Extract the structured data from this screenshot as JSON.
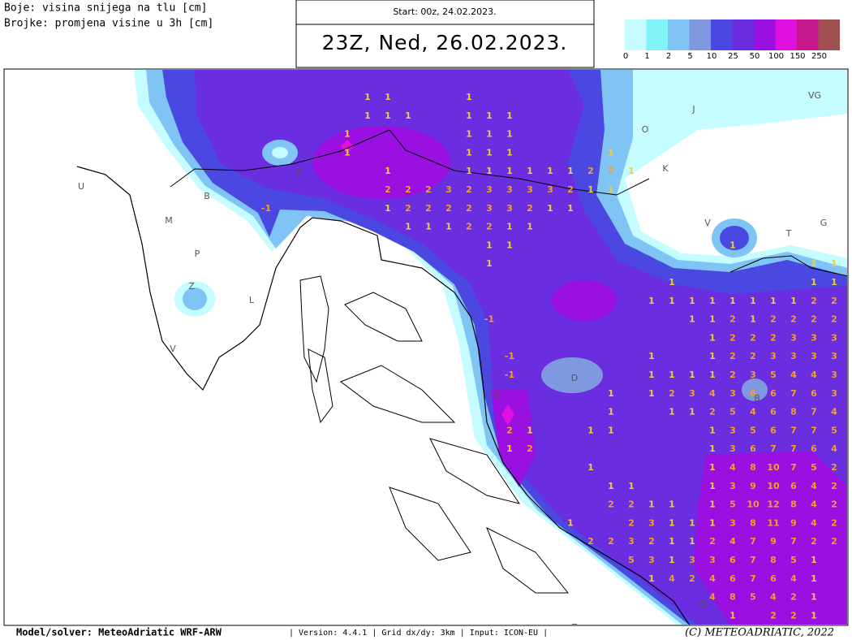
{
  "header": {
    "legend_lines": [
      "Boje: visina snijega na tlu [cm]",
      "Brojke: promjena visine u 3h [cm]"
    ],
    "start": "Start: 00z, 24.02.2023.",
    "valid_time": "23Z, Ned, 26.02.2023."
  },
  "colorbar": {
    "colors": [
      "#c4fcff",
      "#80f4f8",
      "#7fc4f4",
      "#7f98e0",
      "#4a48e0",
      "#6a2ee0",
      "#9a10e0",
      "#e010e0",
      "#c81890",
      "#a05050"
    ],
    "labels": [
      0,
      1,
      2,
      5,
      10,
      25,
      50,
      100,
      150,
      250
    ]
  },
  "map": {
    "place_labels": [
      "U",
      "B",
      "M",
      "P",
      "Z",
      "L",
      "V",
      "R",
      "O",
      "J",
      "K",
      "V",
      "T",
      "G",
      "VG",
      "B",
      "D",
      "K",
      "Z",
      "O"
    ],
    "snow_change_grid": {
      "rows": [
        [
          null,
          null,
          null,
          null,
          null,
          1,
          1,
          null,
          null,
          null,
          1,
          null,
          null,
          null,
          null,
          null,
          null,
          null,
          null,
          null,
          null,
          null,
          null,
          null,
          null,
          null,
          null,
          null,
          null
        ],
        [
          null,
          null,
          null,
          null,
          null,
          1,
          1,
          1,
          null,
          null,
          1,
          1,
          1,
          null,
          null,
          null,
          null,
          null,
          null,
          null,
          null,
          null,
          null,
          null,
          null,
          null,
          null,
          null,
          null
        ],
        [
          null,
          null,
          null,
          null,
          1,
          null,
          null,
          null,
          null,
          null,
          1,
          1,
          1,
          null,
          null,
          null,
          null,
          null,
          null,
          null,
          null,
          null,
          null,
          null,
          null,
          null,
          null,
          null,
          null
        ],
        [
          null,
          null,
          null,
          null,
          1,
          null,
          null,
          null,
          null,
          null,
          1,
          1,
          1,
          null,
          null,
          null,
          null,
          1,
          null,
          null,
          null,
          null,
          null,
          null,
          null,
          null,
          null,
          null,
          null
        ],
        [
          null,
          null,
          null,
          null,
          null,
          null,
          1,
          null,
          null,
          null,
          1,
          1,
          1,
          1,
          1,
          1,
          2,
          2,
          1,
          null,
          null,
          null,
          null,
          null,
          null,
          null,
          null,
          null,
          null
        ],
        [
          null,
          null,
          null,
          null,
          null,
          null,
          2,
          2,
          2,
          3,
          2,
          3,
          3,
          3,
          3,
          2,
          1,
          1,
          null,
          null,
          null,
          null,
          null,
          null,
          null,
          null,
          null,
          null,
          null
        ],
        [
          -1,
          null,
          null,
          null,
          null,
          null,
          1,
          2,
          2,
          2,
          2,
          3,
          3,
          2,
          1,
          1,
          null,
          null,
          null,
          null,
          null,
          null,
          null,
          null,
          null,
          null,
          null,
          null,
          null
        ],
        [
          null,
          null,
          null,
          null,
          null,
          null,
          null,
          1,
          1,
          1,
          2,
          2,
          1,
          1,
          null,
          null,
          null,
          null,
          null,
          null,
          null,
          null,
          null,
          null,
          null,
          null,
          null,
          null,
          null
        ],
        [
          null,
          null,
          null,
          null,
          null,
          null,
          null,
          null,
          null,
          null,
          null,
          1,
          1,
          null,
          null,
          null,
          null,
          null,
          null,
          null,
          null,
          null,
          null,
          1,
          null,
          null,
          null,
          null,
          null
        ],
        [
          null,
          null,
          null,
          null,
          null,
          null,
          null,
          null,
          null,
          null,
          null,
          1,
          null,
          null,
          null,
          null,
          null,
          null,
          null,
          null,
          null,
          null,
          null,
          null,
          null,
          null,
          null,
          1,
          1
        ],
        [
          null,
          null,
          null,
          null,
          null,
          null,
          null,
          null,
          null,
          null,
          null,
          null,
          null,
          null,
          null,
          null,
          null,
          null,
          null,
          null,
          1,
          null,
          null,
          null,
          null,
          null,
          null,
          1,
          1
        ],
        [
          null,
          null,
          null,
          null,
          null,
          null,
          null,
          null,
          null,
          null,
          null,
          null,
          null,
          null,
          null,
          null,
          null,
          null,
          null,
          1,
          1,
          1,
          1,
          1,
          1,
          1,
          1,
          2,
          2
        ],
        [
          null,
          null,
          null,
          null,
          null,
          null,
          null,
          null,
          null,
          null,
          null,
          -1,
          null,
          null,
          null,
          null,
          null,
          null,
          null,
          null,
          null,
          1,
          1,
          2,
          1,
          2,
          2,
          2,
          2
        ],
        [
          null,
          null,
          null,
          null,
          null,
          null,
          null,
          null,
          null,
          null,
          null,
          null,
          null,
          null,
          null,
          null,
          null,
          null,
          null,
          null,
          null,
          null,
          1,
          2,
          2,
          2,
          3,
          3,
          3
        ],
        [
          null,
          null,
          null,
          null,
          null,
          null,
          null,
          null,
          null,
          null,
          null,
          null,
          -1,
          null,
          null,
          null,
          null,
          null,
          null,
          1,
          null,
          null,
          1,
          2,
          2,
          3,
          3,
          3,
          3
        ],
        [
          null,
          null,
          null,
          null,
          null,
          null,
          null,
          null,
          null,
          null,
          null,
          null,
          -1,
          null,
          null,
          null,
          null,
          null,
          null,
          1,
          1,
          1,
          1,
          2,
          3,
          5,
          4,
          4,
          3
        ],
        [
          null,
          null,
          null,
          null,
          null,
          null,
          null,
          null,
          null,
          null,
          null,
          null,
          null,
          null,
          null,
          null,
          null,
          1,
          null,
          1,
          2,
          3,
          4,
          3,
          6,
          6,
          7,
          6,
          3
        ],
        [
          null,
          null,
          null,
          null,
          null,
          null,
          null,
          null,
          null,
          null,
          null,
          null,
          null,
          null,
          null,
          null,
          null,
          1,
          null,
          null,
          1,
          1,
          2,
          5,
          4,
          6,
          8,
          7,
          4
        ],
        [
          null,
          null,
          null,
          null,
          null,
          null,
          null,
          null,
          null,
          null,
          null,
          null,
          2,
          1,
          null,
          null,
          1,
          1,
          null,
          null,
          null,
          null,
          1,
          3,
          5,
          6,
          7,
          7,
          5
        ],
        [
          null,
          null,
          null,
          null,
          null,
          null,
          null,
          null,
          null,
          null,
          null,
          null,
          1,
          2,
          null,
          null,
          null,
          null,
          null,
          null,
          null,
          null,
          1,
          3,
          6,
          7,
          7,
          6,
          4
        ],
        [
          null,
          null,
          null,
          null,
          null,
          null,
          null,
          null,
          null,
          null,
          null,
          null,
          null,
          null,
          null,
          null,
          1,
          null,
          null,
          null,
          null,
          null,
          1,
          4,
          8,
          10,
          7,
          5,
          2
        ],
        [
          null,
          null,
          null,
          null,
          null,
          null,
          null,
          null,
          null,
          null,
          null,
          null,
          null,
          null,
          null,
          null,
          null,
          1,
          1,
          null,
          null,
          null,
          1,
          3,
          9,
          10,
          6,
          4,
          2
        ],
        [
          null,
          null,
          null,
          null,
          null,
          null,
          null,
          null,
          null,
          null,
          null,
          null,
          null,
          null,
          null,
          null,
          null,
          2,
          2,
          1,
          1,
          null,
          1,
          5,
          10,
          12,
          8,
          4,
          2
        ],
        [
          null,
          null,
          null,
          null,
          null,
          null,
          null,
          null,
          null,
          null,
          null,
          null,
          null,
          null,
          null,
          1,
          null,
          null,
          2,
          3,
          1,
          1,
          1,
          3,
          8,
          11,
          9,
          4,
          2
        ],
        [
          null,
          null,
          null,
          null,
          null,
          null,
          null,
          null,
          null,
          null,
          null,
          null,
          null,
          null,
          null,
          null,
          2,
          2,
          3,
          2,
          1,
          1,
          2,
          4,
          7,
          9,
          7,
          2,
          2
        ],
        [
          null,
          null,
          null,
          null,
          null,
          null,
          null,
          null,
          null,
          null,
          null,
          null,
          null,
          null,
          null,
          null,
          null,
          null,
          5,
          3,
          1,
          3,
          3,
          6,
          7,
          8,
          5,
          1,
          null
        ],
        [
          null,
          null,
          null,
          null,
          null,
          null,
          null,
          null,
          null,
          null,
          null,
          null,
          null,
          null,
          null,
          null,
          null,
          null,
          null,
          1,
          4,
          2,
          4,
          6,
          7,
          6,
          4,
          1,
          null
        ],
        [
          null,
          null,
          null,
          null,
          null,
          null,
          null,
          null,
          null,
          null,
          null,
          null,
          null,
          null,
          null,
          null,
          null,
          null,
          null,
          null,
          null,
          null,
          4,
          8,
          5,
          4,
          2,
          1,
          null
        ],
        [
          null,
          null,
          null,
          null,
          null,
          null,
          null,
          null,
          null,
          null,
          null,
          null,
          null,
          null,
          null,
          null,
          null,
          null,
          null,
          null,
          null,
          null,
          null,
          1,
          null,
          2,
          2,
          1,
          null
        ]
      ]
    }
  },
  "footer": {
    "model": "Model/solver: MeteoAdriatic WRF-ARW",
    "info": "| Version: 4.4.1 | Grid dx/dy: 3km | Input: ICON-EU |",
    "copyright": "(C) METEOADRIATIC, 2022"
  }
}
